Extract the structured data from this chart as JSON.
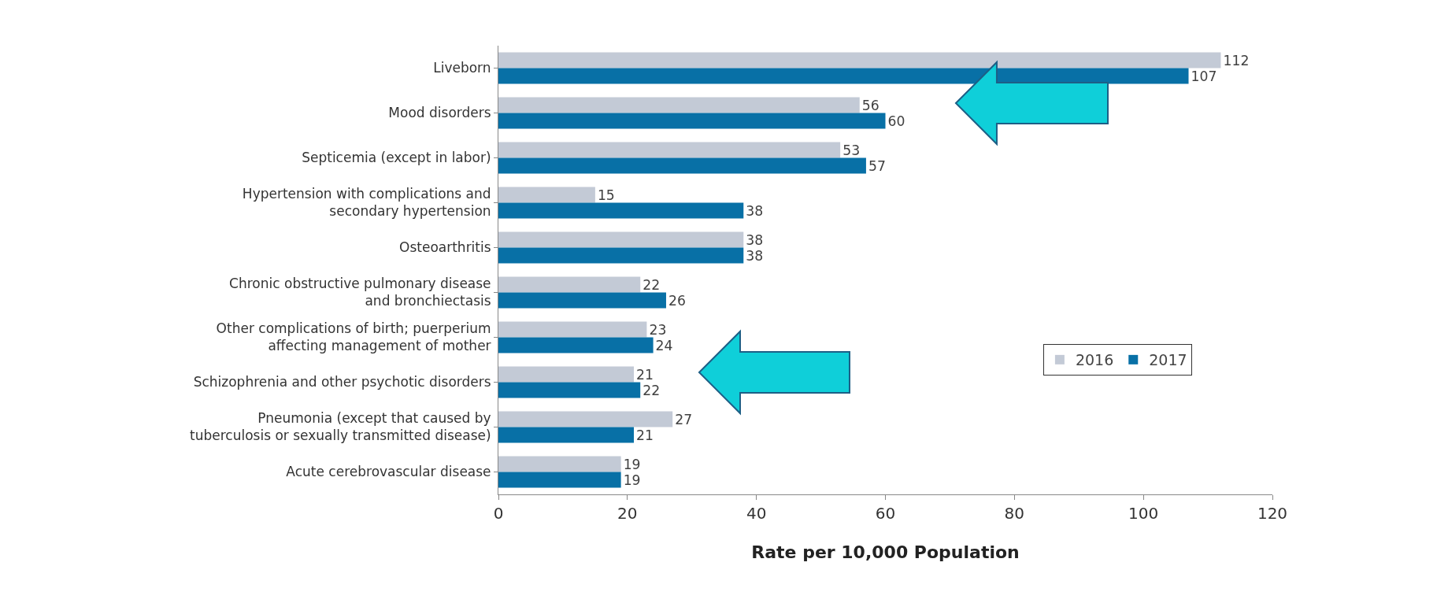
{
  "chart_data": {
    "type": "bar",
    "orientation": "horizontal",
    "xlabel": "Rate per 10,000 Population",
    "categories": [
      "Liveborn",
      "Mood disorders",
      "Septicemia (except in labor)",
      "Hypertension with complications and\nsecondary hypertension",
      "Osteoarthritis",
      "Chronic obstructive pulmonary disease\nand bronchiectasis",
      "Other complications of birth; puerperium\naffecting management of mother",
      "Schizophrenia and other psychotic disorders",
      "Pneumonia (except that caused by\ntuberculosis or sexually transmitted disease)",
      "Acute cerebrovascular disease"
    ],
    "series": [
      {
        "name": "2016",
        "color": "#c3cad6",
        "values": [
          112,
          56,
          53,
          15,
          38,
          22,
          23,
          21,
          27,
          19
        ]
      },
      {
        "name": "2017",
        "color": "#0870a6",
        "values": [
          107,
          60,
          57,
          38,
          38,
          26,
          24,
          22,
          21,
          19
        ]
      }
    ],
    "xlim": [
      0,
      120
    ],
    "xticks": [
      0,
      20,
      40,
      60,
      80,
      100,
      120
    ],
    "data_labels": true,
    "legend": "right"
  }
}
